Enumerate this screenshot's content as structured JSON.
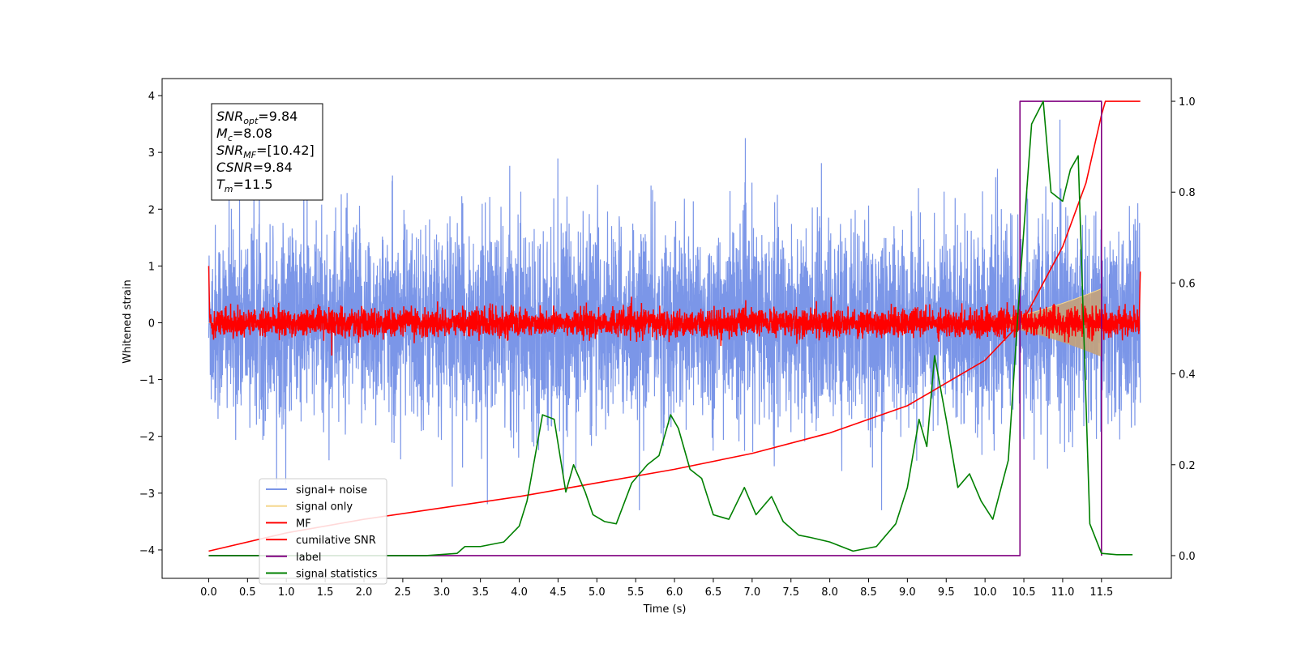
{
  "chart_data": {
    "type": "line",
    "xlabel": "Time (s)",
    "ylabel": "Whitened strain",
    "xlim": [
      -0.6,
      12.4
    ],
    "ylim": [
      -4.5,
      4.3
    ],
    "ylim_right": [
      -0.05,
      1.05
    ],
    "x_ticks": [
      "0.0",
      "0.5",
      "1.0",
      "1.5",
      "2.0",
      "2.5",
      "3.0",
      "3.5",
      "4.0",
      "4.5",
      "5.0",
      "5.5",
      "6.0",
      "6.5",
      "7.0",
      "7.5",
      "8.0",
      "8.5",
      "9.0",
      "9.5",
      "10.0",
      "10.5",
      "11.0",
      "11.5"
    ],
    "y_ticks_left": [
      "−4",
      "−3",
      "−2",
      "−1",
      "0",
      "1",
      "2",
      "3",
      "4"
    ],
    "y_ticks_right": [
      "0.0",
      "0.2",
      "0.4",
      "0.6",
      "0.8",
      "1.0"
    ],
    "grid": false,
    "legend_position": "lower-left",
    "annotation": {
      "lines": [
        {
          "sym": "SNR",
          "sub": "opt",
          "value": "=9.84"
        },
        {
          "sym": "M",
          "sub": "c",
          "value": "=8.08"
        },
        {
          "sym": "SNR",
          "sub": "MF",
          "value": "=[10.42]"
        },
        {
          "sym": "CSNR",
          "sub": "",
          "value": "=9.84"
        },
        {
          "sym": "T",
          "sub": "m",
          "value": "=11.5"
        }
      ]
    },
    "series": [
      {
        "name": "signal+ noise",
        "color": "#7b96e8",
        "axis": "left",
        "description_range": [
          -2.5,
          2.6
        ],
        "x_range": [
          0.0,
          12.0
        ]
      },
      {
        "name": "signal only",
        "color": "#f5d78e",
        "axis": "left",
        "fill_color": "#c4a27a",
        "chirp_end": 11.5,
        "peak_amplitude": 0.6
      },
      {
        "name": "MF",
        "color": "#ff0000",
        "axis": "left",
        "noise_amplitude": 0.12
      },
      {
        "name": "cumilative SNR",
        "color": "#ff0000",
        "axis": "right",
        "x": [
          0.0,
          1.0,
          2.0,
          3.0,
          4.0,
          5.0,
          6.0,
          7.0,
          8.0,
          9.0,
          9.5,
          10.0,
          10.5,
          11.0,
          11.3,
          11.5,
          11.55,
          12.0
        ],
        "values": [
          0.01,
          0.05,
          0.08,
          0.105,
          0.13,
          0.16,
          0.19,
          0.225,
          0.27,
          0.33,
          0.38,
          0.43,
          0.52,
          0.68,
          0.82,
          0.97,
          1.0,
          1.0
        ]
      },
      {
        "name": "label",
        "color": "#800080",
        "axis": "right",
        "x": [
          0.0,
          10.45,
          10.45,
          11.5,
          11.5
        ],
        "values": [
          0.0,
          0.0,
          1.0,
          1.0,
          0.0
        ]
      },
      {
        "name": "signal statistics",
        "color": "#008000",
        "axis": "right",
        "x": [
          0.0,
          2.8,
          3.2,
          3.3,
          3.5,
          3.8,
          4.0,
          4.1,
          4.3,
          4.45,
          4.6,
          4.7,
          4.85,
          4.95,
          5.1,
          5.25,
          5.45,
          5.65,
          5.8,
          5.95,
          6.05,
          6.2,
          6.35,
          6.5,
          6.7,
          6.9,
          7.05,
          7.25,
          7.4,
          7.6,
          7.75,
          8.0,
          8.3,
          8.6,
          8.85,
          9.0,
          9.15,
          9.25,
          9.35,
          9.5,
          9.65,
          9.8,
          9.95,
          10.1,
          10.3,
          10.45,
          10.6,
          10.75,
          10.85,
          11.0,
          11.1,
          11.2,
          11.35,
          11.5,
          11.7,
          11.9
        ],
        "values": [
          0.0,
          0.0,
          0.005,
          0.02,
          0.02,
          0.03,
          0.065,
          0.12,
          0.31,
          0.3,
          0.14,
          0.2,
          0.14,
          0.09,
          0.075,
          0.07,
          0.16,
          0.2,
          0.22,
          0.31,
          0.28,
          0.19,
          0.17,
          0.09,
          0.08,
          0.15,
          0.09,
          0.13,
          0.075,
          0.045,
          0.04,
          0.03,
          0.01,
          0.02,
          0.07,
          0.15,
          0.3,
          0.24,
          0.44,
          0.3,
          0.15,
          0.18,
          0.12,
          0.08,
          0.21,
          0.6,
          0.95,
          1.0,
          0.8,
          0.78,
          0.85,
          0.88,
          0.07,
          0.005,
          0.002,
          0.002
        ]
      }
    ]
  }
}
